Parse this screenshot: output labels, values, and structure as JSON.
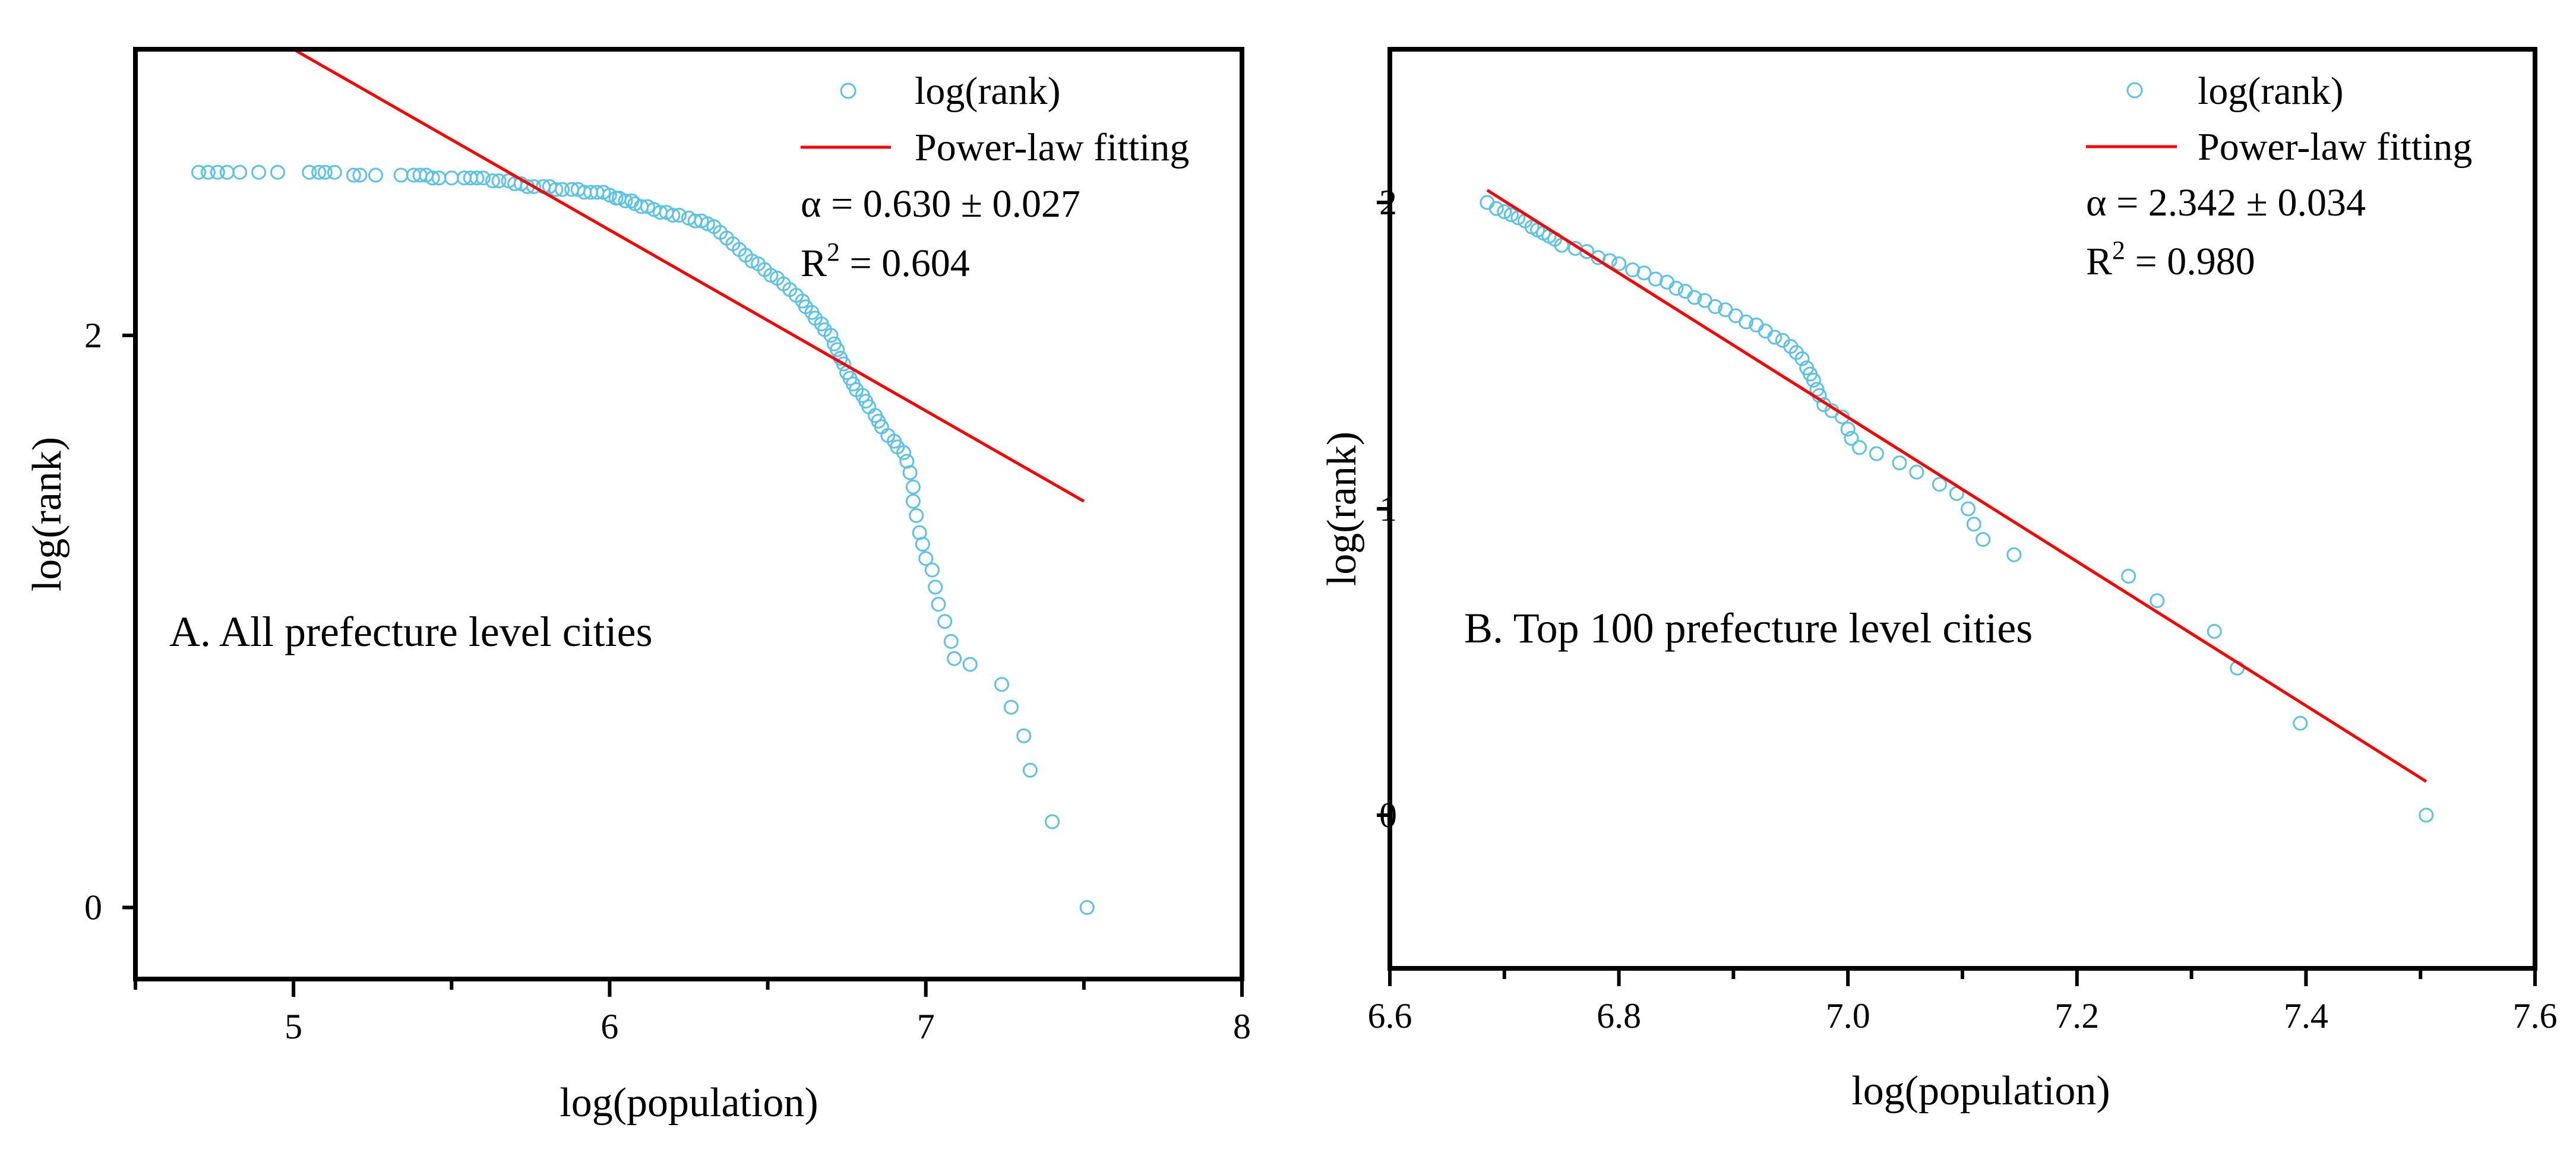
{
  "chart_data": [
    {
      "type": "scatter",
      "panel_label": "A. All prefecture level cities",
      "xlabel": "log(population)",
      "ylabel": "log(rank)",
      "xlim": [
        4.5,
        8.0
      ],
      "ylim": [
        -0.25,
        3.0
      ],
      "x_ticks": [
        5,
        6,
        7,
        8
      ],
      "x_tick_labels": [
        "5",
        "6",
        "7",
        "8"
      ],
      "y_ticks": [
        0,
        2
      ],
      "y_tick_labels": [
        "0",
        "2"
      ],
      "grid": false,
      "legend": {
        "position": "top-right",
        "entries": [
          {
            "label": "log(rank)",
            "marker": "open-circle",
            "color": "#5bc2e7"
          },
          {
            "label": "Power-law fitting",
            "marker": "line",
            "color": "#ff0000"
          }
        ]
      },
      "stats": {
        "alpha_text": "α = 0.630 ± 0.027",
        "r2_prefix": "R",
        "r2_sup": "2",
        "r2_value": " = 0.604"
      },
      "fit_line": {
        "x": [
          5.0,
          7.5
        ],
        "y": [
          3.0,
          1.42
        ]
      },
      "series": [
        {
          "name": "log(rank)",
          "color": "#5bc2e7",
          "points": [
            [
              4.7,
              2.57
            ],
            [
              4.73,
              2.57
            ],
            [
              4.76,
              2.57
            ],
            [
              4.79,
              2.57
            ],
            [
              4.83,
              2.57
            ],
            [
              4.89,
              2.57
            ],
            [
              4.95,
              2.57
            ],
            [
              5.05,
              2.57
            ],
            [
              5.08,
              2.57
            ],
            [
              5.1,
              2.57
            ],
            [
              5.13,
              2.57
            ],
            [
              5.19,
              2.56
            ],
            [
              5.21,
              2.56
            ],
            [
              5.26,
              2.56
            ],
            [
              5.34,
              2.56
            ],
            [
              5.38,
              2.56
            ],
            [
              5.4,
              2.56
            ],
            [
              5.42,
              2.56
            ],
            [
              5.44,
              2.55
            ],
            [
              5.46,
              2.55
            ],
            [
              5.5,
              2.55
            ],
            [
              5.54,
              2.55
            ],
            [
              5.56,
              2.55
            ],
            [
              5.58,
              2.55
            ],
            [
              5.6,
              2.55
            ],
            [
              5.63,
              2.54
            ],
            [
              5.65,
              2.54
            ],
            [
              5.68,
              2.54
            ],
            [
              5.7,
              2.53
            ],
            [
              5.72,
              2.53
            ],
            [
              5.74,
              2.52
            ],
            [
              5.76,
              2.52
            ],
            [
              5.79,
              2.52
            ],
            [
              5.81,
              2.52
            ],
            [
              5.83,
              2.51
            ],
            [
              5.85,
              2.51
            ],
            [
              5.88,
              2.51
            ],
            [
              5.9,
              2.51
            ],
            [
              5.92,
              2.5
            ],
            [
              5.94,
              2.5
            ],
            [
              5.96,
              2.5
            ],
            [
              5.98,
              2.5
            ],
            [
              6.0,
              2.49
            ],
            [
              6.02,
              2.48
            ],
            [
              6.03,
              2.48
            ],
            [
              6.05,
              2.47
            ],
            [
              6.07,
              2.47
            ],
            [
              6.08,
              2.46
            ],
            [
              6.1,
              2.45
            ],
            [
              6.12,
              2.45
            ],
            [
              6.14,
              2.44
            ],
            [
              6.16,
              2.43
            ],
            [
              6.18,
              2.43
            ],
            [
              6.2,
              2.42
            ],
            [
              6.22,
              2.42
            ],
            [
              6.25,
              2.41
            ],
            [
              6.27,
              2.4
            ],
            [
              6.29,
              2.4
            ],
            [
              6.31,
              2.39
            ],
            [
              6.33,
              2.38
            ],
            [
              6.35,
              2.36
            ],
            [
              6.37,
              2.34
            ],
            [
              6.39,
              2.32
            ],
            [
              6.41,
              2.3
            ],
            [
              6.43,
              2.28
            ],
            [
              6.45,
              2.26
            ],
            [
              6.47,
              2.25
            ],
            [
              6.49,
              2.23
            ],
            [
              6.51,
              2.21
            ],
            [
              6.53,
              2.2
            ],
            [
              6.55,
              2.18
            ],
            [
              6.57,
              2.16
            ],
            [
              6.59,
              2.14
            ],
            [
              6.61,
              2.12
            ],
            [
              6.62,
              2.1
            ],
            [
              6.64,
              2.08
            ],
            [
              6.65,
              2.06
            ],
            [
              6.67,
              2.04
            ],
            [
              6.68,
              2.02
            ],
            [
              6.7,
              2.0
            ],
            [
              6.71,
              1.97
            ],
            [
              6.72,
              1.95
            ],
            [
              6.73,
              1.92
            ],
            [
              6.74,
              1.9
            ],
            [
              6.75,
              1.87
            ],
            [
              6.76,
              1.85
            ],
            [
              6.77,
              1.83
            ],
            [
              6.78,
              1.81
            ],
            [
              6.8,
              1.79
            ],
            [
              6.81,
              1.77
            ],
            [
              6.82,
              1.75
            ],
            [
              6.84,
              1.72
            ],
            [
              6.85,
              1.7
            ],
            [
              6.86,
              1.68
            ],
            [
              6.88,
              1.65
            ],
            [
              6.9,
              1.63
            ],
            [
              6.91,
              1.61
            ],
            [
              6.93,
              1.59
            ],
            [
              6.94,
              1.56
            ],
            [
              6.95,
              1.52
            ],
            [
              6.96,
              1.47
            ],
            [
              6.96,
              1.42
            ],
            [
              6.97,
              1.37
            ],
            [
              6.98,
              1.31
            ],
            [
              6.99,
              1.27
            ],
            [
              7.0,
              1.22
            ],
            [
              7.02,
              1.18
            ],
            [
              7.03,
              1.12
            ],
            [
              7.04,
              1.06
            ],
            [
              7.06,
              1.0
            ],
            [
              7.08,
              0.93
            ],
            [
              7.09,
              0.87
            ],
            [
              7.14,
              0.85
            ],
            [
              7.24,
              0.78
            ],
            [
              7.27,
              0.7
            ],
            [
              7.31,
              0.6
            ],
            [
              7.33,
              0.48
            ],
            [
              7.4,
              0.3
            ],
            [
              7.51,
              0.0
            ]
          ]
        }
      ]
    },
    {
      "type": "scatter",
      "panel_label": "B. Top 100 prefecture level cities",
      "xlabel": "log(population)",
      "ylabel": "log(rank)",
      "xlim": [
        6.6,
        7.6
      ],
      "ylim": [
        -0.5,
        2.5
      ],
      "x_ticks": [
        6.6,
        6.8,
        7.0,
        7.2,
        7.4,
        7.6
      ],
      "x_tick_labels": [
        "6.6",
        "6.8",
        "7.0",
        "7.2",
        "7.4",
        "7.6"
      ],
      "y_ticks": [
        0,
        1,
        2
      ],
      "y_tick_labels": [
        "0",
        "1",
        "2"
      ],
      "grid": false,
      "legend": {
        "position": "top-right",
        "entries": [
          {
            "label": "log(rank)",
            "marker": "open-circle",
            "color": "#5bc2e7"
          },
          {
            "label": "Power-law fitting",
            "marker": "line",
            "color": "#ff0000"
          }
        ]
      },
      "stats": {
        "alpha_text": "α = 2.342 ± 0.034",
        "r2_prefix": "R",
        "r2_sup": "2",
        "r2_value": " = 0.980"
      },
      "fit_line": {
        "x": [
          6.685,
          7.505
        ],
        "y": [
          2.04,
          0.11
        ]
      },
      "series": [
        {
          "name": "log(rank)",
          "color": "#5bc2e7",
          "points": [
            [
              6.685,
              2.0
            ],
            [
              6.693,
              1.98
            ],
            [
              6.7,
              1.97
            ],
            [
              6.706,
              1.96
            ],
            [
              6.712,
              1.95
            ],
            [
              6.718,
              1.94
            ],
            [
              6.724,
              1.92
            ],
            [
              6.729,
              1.91
            ],
            [
              6.734,
              1.9
            ],
            [
              6.739,
              1.89
            ],
            [
              6.744,
              1.88
            ],
            [
              6.75,
              1.86
            ],
            [
              6.762,
              1.85
            ],
            [
              6.772,
              1.84
            ],
            [
              6.782,
              1.82
            ],
            [
              6.792,
              1.81
            ],
            [
              6.8,
              1.8
            ],
            [
              6.812,
              1.78
            ],
            [
              6.822,
              1.77
            ],
            [
              6.832,
              1.75
            ],
            [
              6.842,
              1.74
            ],
            [
              6.85,
              1.72
            ],
            [
              6.858,
              1.71
            ],
            [
              6.866,
              1.69
            ],
            [
              6.875,
              1.68
            ],
            [
              6.884,
              1.66
            ],
            [
              6.893,
              1.65
            ],
            [
              6.902,
              1.63
            ],
            [
              6.911,
              1.61
            ],
            [
              6.92,
              1.6
            ],
            [
              6.928,
              1.58
            ],
            [
              6.936,
              1.56
            ],
            [
              6.943,
              1.55
            ],
            [
              6.95,
              1.53
            ],
            [
              6.955,
              1.51
            ],
            [
              6.96,
              1.49
            ],
            [
              6.964,
              1.46
            ],
            [
              6.967,
              1.44
            ],
            [
              6.97,
              1.42
            ],
            [
              6.973,
              1.39
            ],
            [
              6.975,
              1.37
            ],
            [
              6.979,
              1.34
            ],
            [
              6.986,
              1.32
            ],
            [
              6.995,
              1.3
            ],
            [
              7.0,
              1.26
            ],
            [
              7.003,
              1.23
            ],
            [
              7.01,
              1.2
            ],
            [
              7.025,
              1.18
            ],
            [
              7.045,
              1.15
            ],
            [
              7.06,
              1.12
            ],
            [
              7.08,
              1.08
            ],
            [
              7.095,
              1.05
            ],
            [
              7.105,
              1.0
            ],
            [
              7.11,
              0.95
            ],
            [
              7.118,
              0.9
            ],
            [
              7.145,
              0.85
            ],
            [
              7.245,
              0.78
            ],
            [
              7.27,
              0.7
            ],
            [
              7.32,
              0.6
            ],
            [
              7.34,
              0.48
            ],
            [
              7.395,
              0.3
            ],
            [
              7.505,
              0.0
            ]
          ]
        }
      ]
    }
  ]
}
